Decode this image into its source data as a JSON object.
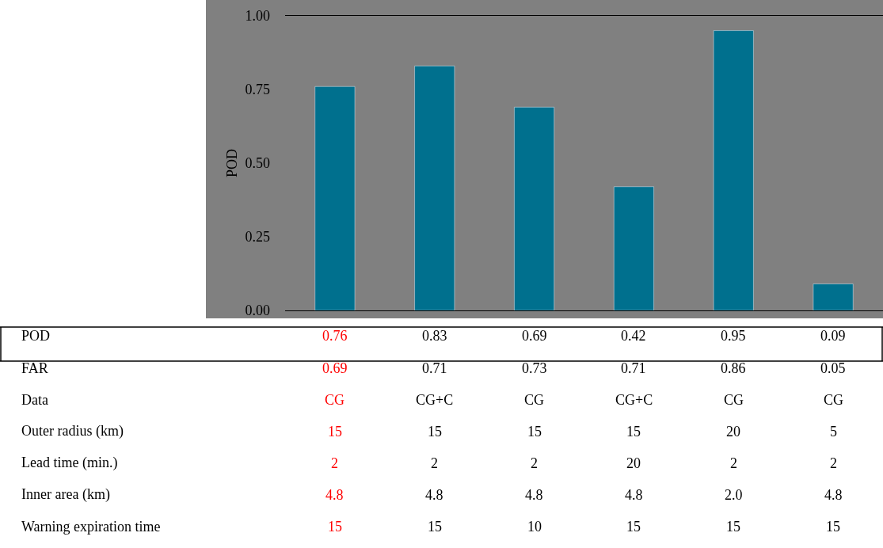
{
  "chart_data": {
    "type": "bar",
    "ylabel": "POD",
    "categories": [
      null,
      null,
      null,
      null,
      null,
      null
    ],
    "values": [
      0.76,
      0.83,
      0.69,
      0.42,
      0.95,
      0.09
    ],
    "color": "#00708e",
    "ylim": [
      0,
      1
    ],
    "yticks": [
      "0.00",
      "0.25",
      "0.50",
      "0.75",
      "1.00"
    ],
    "tick_labels": "y",
    "data_labels": true,
    "grid": false,
    "legend": false,
    "annotations": [
      "POD",
      "FAR",
      "0.69",
      "0.71",
      "0.73",
      "0.71",
      "0.86",
      "0.05",
      "Data",
      "CG",
      "CG+C",
      "CG",
      "CG+C",
      "CG",
      "CG",
      "Outer radius (km)",
      "15",
      "15",
      "15",
      "15",
      "20",
      "5",
      "Lead time (min.)",
      "2",
      "2",
      "2",
      "20",
      "2",
      "2",
      "Inner area (km)",
      "4.8",
      "4.8",
      "4.8",
      "4.8",
      "2.0",
      "4.8",
      "Warning expiration time",
      "15",
      "15",
      "10",
      "15",
      "15",
      "15"
    ]
  }
}
